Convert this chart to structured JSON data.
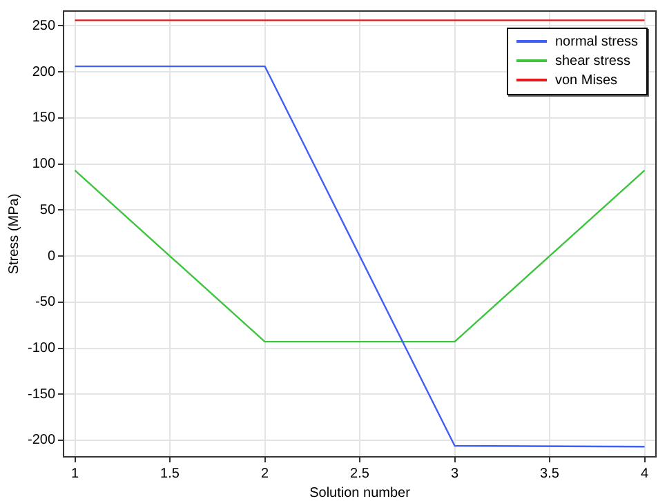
{
  "chart_data": {
    "type": "line",
    "xlabel": "Solution number",
    "ylabel": "Stress (MPa)",
    "x": [
      1,
      2,
      3,
      4
    ],
    "series": [
      {
        "name": "normal stress",
        "color": "#3f5ff5",
        "values": [
          206,
          206,
          -206,
          -207
        ]
      },
      {
        "name": "shear stress",
        "color": "#3ec43e",
        "values": [
          93,
          -93,
          -93,
          93
        ]
      },
      {
        "name": "von Mises",
        "color": "#e8181a",
        "values": [
          256,
          256,
          256,
          256
        ]
      }
    ],
    "xlim": [
      0.94,
      4.06
    ],
    "xticks": [
      1,
      1.5,
      2,
      2.5,
      3,
      3.5,
      4
    ],
    "ylim": [
      -218,
      266
    ],
    "yticks": [
      -200,
      -150,
      -100,
      -50,
      0,
      50,
      100,
      150,
      200,
      250
    ],
    "grid": true,
    "legend": "top right",
    "marker": "none",
    "line_style": "solid"
  }
}
